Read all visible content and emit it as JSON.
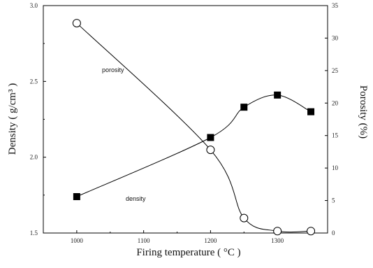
{
  "chart_data": {
    "type": "line",
    "xlabel": "Firing temperature ( °C )",
    "ylabel_left": "Density ( g/cm³ )",
    "ylabel_right": "Porosity (%)",
    "xlim": [
      950,
      1375
    ],
    "ylim_left": [
      1.5,
      3.0
    ],
    "ylim_right": [
      0,
      35
    ],
    "x_tick_labels": [
      "1000",
      "1100",
      "1200",
      "1300"
    ],
    "y_left_tick_labels": [
      "1.5",
      "2.0",
      "2.5",
      "3.0"
    ],
    "y_right_tick_labels": [
      "0",
      "5",
      "10",
      "15",
      "20",
      "25",
      "30",
      "35"
    ],
    "annotations": [
      "porosity",
      "density"
    ],
    "grid": false,
    "series": [
      {
        "name": "density",
        "axis": "left",
        "marker": "filled-square",
        "color": "#000000",
        "x": [
          1000,
          1200,
          1250,
          1300,
          1350
        ],
        "y": [
          1.74,
          2.13,
          2.33,
          2.41,
          2.3
        ]
      },
      {
        "name": "porosity",
        "axis": "right",
        "marker": "open-circle",
        "color": "#000000",
        "x": [
          1000,
          1200,
          1250,
          1300,
          1350
        ],
        "y": [
          32.3,
          12.8,
          2.3,
          0.3,
          0.3
        ]
      }
    ]
  }
}
